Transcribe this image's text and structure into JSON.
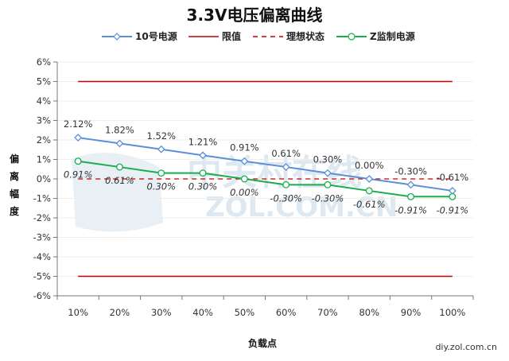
{
  "chart_data": {
    "type": "line",
    "title": "3.3V电压偏离曲线",
    "xlabel": "负载点",
    "ylabel": "偏离幅度",
    "categories": [
      "10%",
      "20%",
      "30%",
      "40%",
      "50%",
      "60%",
      "70%",
      "80%",
      "90%",
      "100%"
    ],
    "ylim": [
      -6,
      6
    ],
    "yticks": [
      "6%",
      "5%",
      "4%",
      "3%",
      "2%",
      "1%",
      "0%",
      "-1%",
      "-2%",
      "-3%",
      "-4%",
      "-5%",
      "-6%"
    ],
    "legend_position": "top-center",
    "grid": true,
    "series": [
      {
        "name": "10号电源",
        "color": "#5b8fd6",
        "marker": "diamond",
        "values": [
          2.12,
          1.82,
          1.52,
          1.21,
          0.91,
          0.61,
          0.3,
          0.0,
          -0.3,
          -0.61
        ],
        "labels": [
          "2.12%",
          "1.82%",
          "1.52%",
          "1.21%",
          "0.91%",
          "0.61%",
          "0.30%",
          "0.00%",
          "-0.30%",
          "-0.61%"
        ]
      },
      {
        "name": "限值",
        "color": "#c00000",
        "style": "solid",
        "values": [
          5,
          5,
          5,
          5,
          5,
          5,
          5,
          5,
          5,
          5
        ],
        "values_lower": [
          -5,
          -5,
          -5,
          -5,
          -5,
          -5,
          -5,
          -5,
          -5,
          -5
        ]
      },
      {
        "name": "理想状态",
        "color": "#c00000",
        "style": "dashed",
        "values": [
          0,
          0,
          0,
          0,
          0,
          0,
          0,
          0,
          0,
          0
        ]
      },
      {
        "name": "Z监制电源",
        "color": "#1aad4e",
        "marker": "circle",
        "values": [
          0.91,
          0.61,
          0.3,
          0.3,
          0.0,
          -0.3,
          -0.3,
          -0.61,
          -0.91,
          -0.91
        ],
        "labels": [
          "0.91%",
          "0.61%",
          "0.30%",
          "0.30%",
          "0.00%",
          "-0.30%",
          "-0.30%",
          "-0.61%",
          "-0.91%",
          "-0.91%"
        ]
      }
    ]
  },
  "source": "diy.zol.com.cn",
  "watermark": "中关村在线 ZOL.COM.CN"
}
